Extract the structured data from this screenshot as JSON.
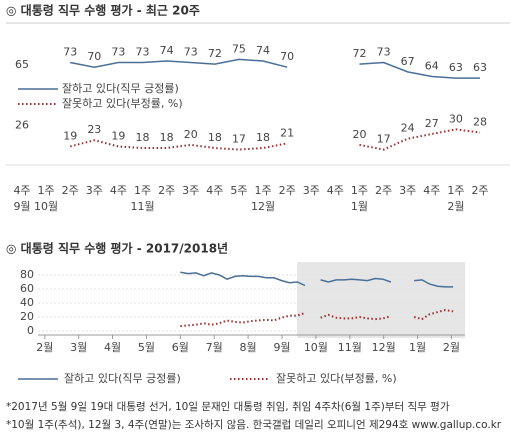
{
  "chart_data": [
    {
      "type": "line",
      "title": "◎  대통령 직무 수행 평가 - 최근 20주",
      "categories": [
        "4주",
        "1주",
        "2주",
        "3주",
        "4주",
        "1주",
        "2주",
        "3주",
        "4주",
        "5주",
        "1주",
        "2주",
        "3주",
        "4주",
        "1주",
        "2주",
        "3주",
        "4주",
        "1주",
        "2주"
      ],
      "month_labels": [
        "9월",
        "10월",
        null,
        null,
        null,
        "11월",
        null,
        null,
        null,
        null,
        "12월",
        null,
        null,
        null,
        "1월",
        null,
        null,
        null,
        "2월",
        null
      ],
      "ylim": [
        0,
        110
      ],
      "series": [
        {
          "name": "잘하고 있다(직무 긍정률)",
          "color": "#4a6f96",
          "style": "solid",
          "values": [
            65,
            null,
            73,
            70,
            73,
            73,
            74,
            73,
            72,
            75,
            74,
            70,
            null,
            null,
            72,
            73,
            67,
            64,
            63,
            63
          ]
        },
        {
          "name": "잘못하고 있다(부정률, %)",
          "color": "#9b2d2d",
          "style": "dotted",
          "values": [
            26,
            null,
            19,
            23,
            19,
            18,
            18,
            20,
            18,
            17,
            18,
            21,
            null,
            null,
            20,
            17,
            24,
            27,
            30,
            28
          ]
        }
      ]
    },
    {
      "type": "line",
      "title": "◎  대통령 직무 수행 평가 - 2017/2018년",
      "x": [
        4.0,
        4.23,
        4.46,
        4.69,
        4.92,
        5.15,
        5.38,
        5.61,
        5.84,
        6.07,
        6.3,
        6.53,
        6.76,
        6.99,
        7.22,
        7.45,
        7.68,
        7.91,
        8.14,
        8.37,
        8.6,
        8.83,
        9.06,
        9.29,
        9.52,
        9.75,
        9.98,
        10.21,
        10.44,
        10.67,
        10.9,
        11.13,
        11.36,
        11.59,
        11.82,
        12.05
      ],
      "xlim": [
        -0.2,
        12.4
      ],
      "xticks": [
        {
          "value": 0,
          "label": "2월"
        },
        {
          "value": 1,
          "label": "3월"
        },
        {
          "value": 2,
          "label": "4월"
        },
        {
          "value": 3,
          "label": "5월"
        },
        {
          "value": 4,
          "label": "6월"
        },
        {
          "value": 5,
          "label": "7월"
        },
        {
          "value": 6,
          "label": "8월"
        },
        {
          "value": 7,
          "label": "9월"
        },
        {
          "value": 8,
          "label": "10월"
        },
        {
          "value": 9,
          "label": "11월"
        },
        {
          "value": 10,
          "label": "12월"
        },
        {
          "value": 11,
          "label": "1월"
        },
        {
          "value": 12,
          "label": "2월"
        }
      ],
      "ylim": [
        0,
        90
      ],
      "yticks": [
        0,
        20,
        40,
        60,
        80
      ],
      "grid": true,
      "series": [
        {
          "name": "잘하고 있다(직무 긍정률)",
          "color": "#4a6f96",
          "style": "solid",
          "values": [
            84,
            82,
            83,
            79,
            83,
            80,
            74,
            78,
            79,
            78,
            78,
            76,
            76,
            72,
            69,
            70,
            65,
            null,
            73,
            70,
            73,
            73,
            74,
            73,
            72,
            75,
            74,
            70,
            null,
            null,
            72,
            73,
            67,
            64,
            63,
            63
          ]
        },
        {
          "name": "잘못하고 있다(부정률, %)",
          "color": "#9b2d2d",
          "style": "dotted",
          "values": [
            7,
            8,
            9,
            11,
            9,
            11,
            15,
            13,
            12,
            14,
            15,
            16,
            15,
            19,
            22,
            22,
            26,
            null,
            19,
            23,
            19,
            18,
            18,
            20,
            18,
            17,
            18,
            21,
            null,
            null,
            20,
            17,
            24,
            27,
            30,
            28
          ]
        }
      ]
    }
  ],
  "footnotes": [
    "*2017년 5월 9일 19대 대통령 선거, 10일 문재인 대통령 취임, 취임 4주차(6월 1주)부터 직무 평가",
    "*10월 1주(추석), 12월 3, 4주(연말)는 조사하지 않음. 한국갤럽 데일리 오피니언 제294호 www.gallup.co.kr"
  ]
}
